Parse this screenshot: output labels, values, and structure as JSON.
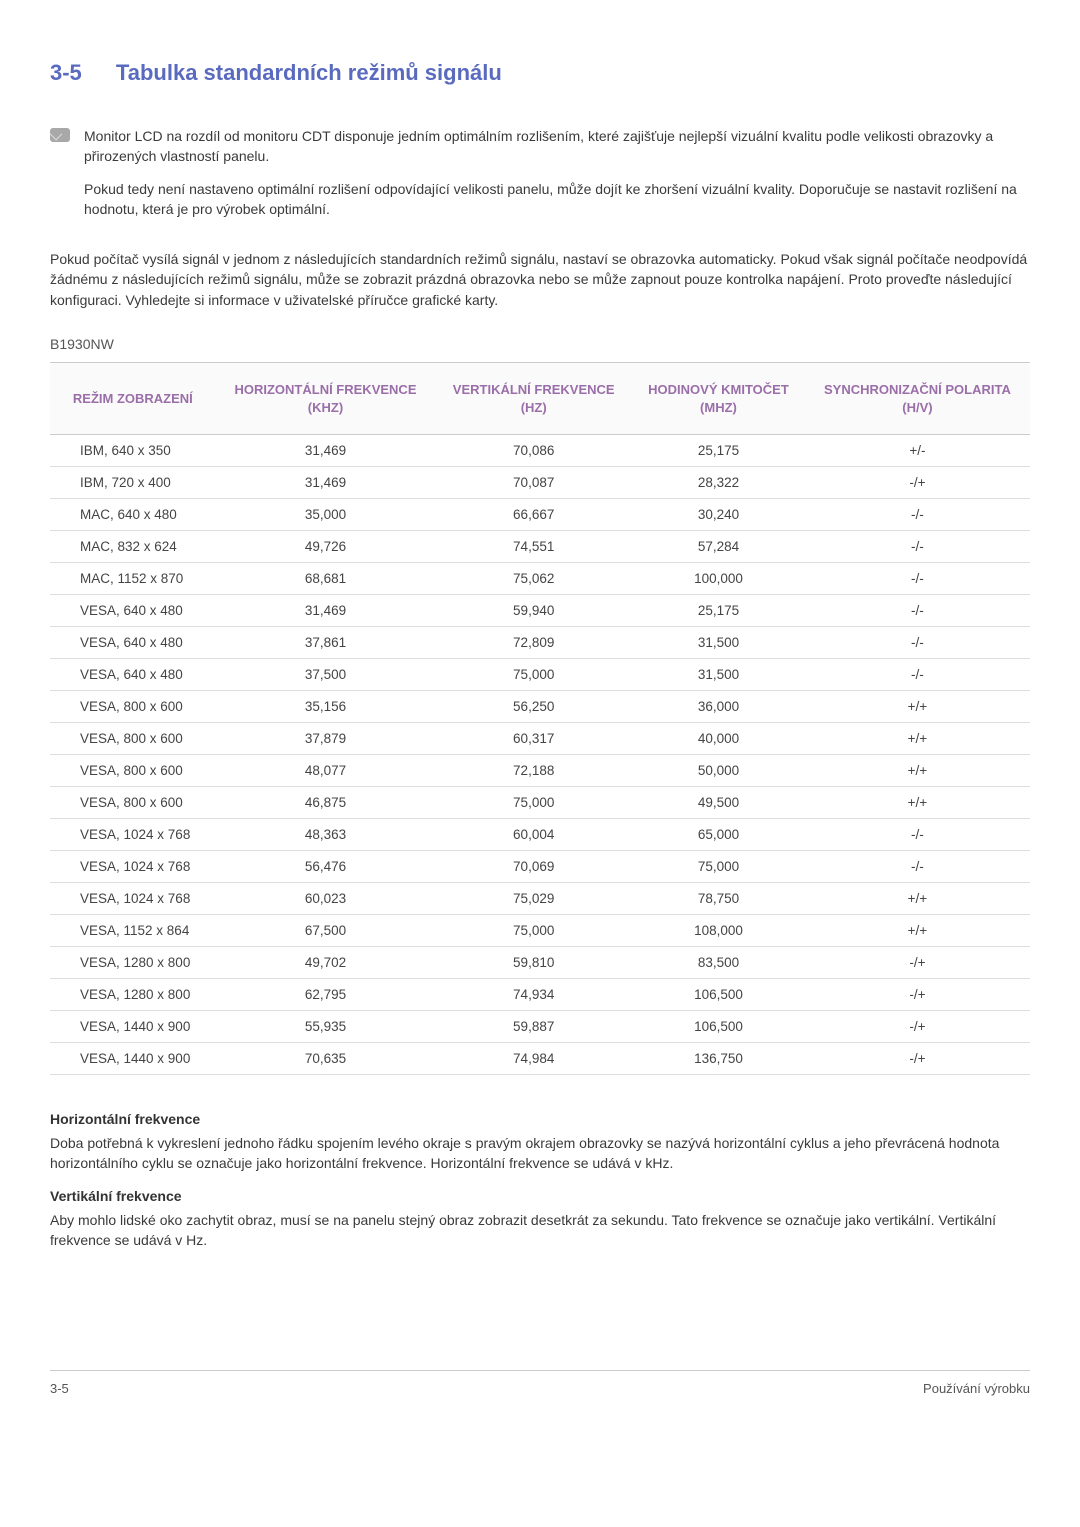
{
  "section": {
    "number": "3-5",
    "title": "Tabulka standardních režimů signálu"
  },
  "note": {
    "p1": "Monitor LCD na rozdíl od monitoru CDT disponuje jedním optimálním rozlišením, které zajišťuje nejlepší vizuální kvalitu podle velikosti obrazovky a přirozených vlastností panelu.",
    "p2": "Pokud tedy není nastaveno optimální rozlišení odpovídající velikosti panelu, může dojít ke zhoršení vizuální kvality. Doporučuje se nastavit rozlišení na hodnotu, která je pro výrobek optimální."
  },
  "body_p": "Pokud počítač vysílá signál v jednom z následujících standardních režimů signálu, nastaví se obrazovka automaticky. Pokud však signál počítače neodpovídá žádnému z následujících režimů signálu, může se zobrazit prázdná obrazovka nebo se může zapnout pouze kontrolka napájení. Proto proveďte následující konfiguraci. Vyhledejte si informace v uživatelské příručce grafické karty.",
  "model": "B1930NW",
  "table": {
    "columns": [
      "REŽIM ZOBRAZENÍ",
      "HORIZONTÁLNÍ FREKVENCE (KHZ)",
      "VERTIKÁLNÍ FREKVENCE (HZ)",
      "HODINOVÝ KMITOČET (MHZ)",
      "SYNCHRONIZAČNÍ POLARITA (H/V)"
    ],
    "rows": [
      [
        "IBM, 640 x 350",
        "31,469",
        "70,086",
        "25,175",
        "+/-"
      ],
      [
        "IBM, 720 x 400",
        "31,469",
        "70,087",
        "28,322",
        "-/+"
      ],
      [
        "MAC, 640 x 480",
        "35,000",
        "66,667",
        "30,240",
        "-/-"
      ],
      [
        "MAC, 832 x 624",
        "49,726",
        "74,551",
        "57,284",
        "-/-"
      ],
      [
        "MAC, 1152 x 870",
        "68,681",
        "75,062",
        "100,000",
        "-/-"
      ],
      [
        "VESA, 640 x 480",
        "31,469",
        "59,940",
        "25,175",
        "-/-"
      ],
      [
        "VESA, 640 x 480",
        "37,861",
        "72,809",
        "31,500",
        "-/-"
      ],
      [
        "VESA, 640 x 480",
        "37,500",
        "75,000",
        "31,500",
        "-/-"
      ],
      [
        "VESA, 800 x 600",
        "35,156",
        "56,250",
        "36,000",
        "+/+"
      ],
      [
        "VESA, 800 x 600",
        "37,879",
        "60,317",
        "40,000",
        "+/+"
      ],
      [
        "VESA, 800 x 600",
        "48,077",
        "72,188",
        "50,000",
        "+/+"
      ],
      [
        "VESA, 800 x 600",
        "46,875",
        "75,000",
        "49,500",
        "+/+"
      ],
      [
        "VESA, 1024 x 768",
        "48,363",
        "60,004",
        "65,000",
        "-/-"
      ],
      [
        "VESA, 1024 x 768",
        "56,476",
        "70,069",
        "75,000",
        "-/-"
      ],
      [
        "VESA, 1024 x 768",
        "60,023",
        "75,029",
        "78,750",
        "+/+"
      ],
      [
        "VESA, 1152 x 864",
        "67,500",
        "75,000",
        "108,000",
        "+/+"
      ],
      [
        "VESA, 1280 x 800",
        "49,702",
        "59,810",
        "83,500",
        "-/+"
      ],
      [
        "VESA, 1280 x 800",
        "62,795",
        "74,934",
        "106,500",
        "-/+"
      ],
      [
        "VESA, 1440 x 900",
        "55,935",
        "59,887",
        "106,500",
        "-/+"
      ],
      [
        "VESA, 1440 x 900",
        "70,635",
        "74,984",
        "136,750",
        "-/+"
      ]
    ]
  },
  "hfreq": {
    "title": "Horizontální frekvence",
    "text": "Doba potřebná k vykreslení jednoho řádku spojením levého okraje s pravým okrajem obrazovky se nazývá horizontální cyklus a jeho převrácená hodnota horizontálního cyklu se označuje jako horizontální frekvence. Horizontální frekvence se udává v kHz."
  },
  "vfreq": {
    "title": "Vertikální frekvence",
    "text": "Aby mohlo lidské oko zachytit obraz, musí se na panelu stejný obraz zobrazit desetkrát za sekundu. Tato frekvence se označuje jako vertikální. Vertikální frekvence se udává v Hz."
  },
  "footer": {
    "left": "3-5",
    "right": "Používání výrobku"
  }
}
